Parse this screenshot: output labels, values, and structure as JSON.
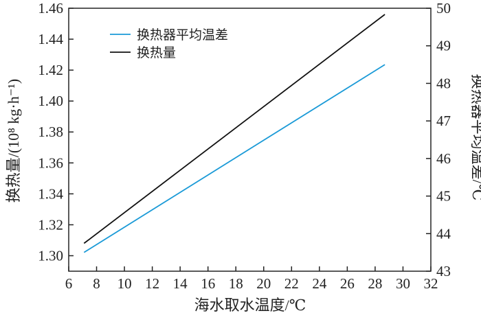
{
  "chart_data": {
    "type": "line",
    "title": "",
    "xlabel": "海水取水温度/℃",
    "ylabel_left": "换热量/(10⁸ kg·h⁻¹)",
    "ylabel_right": "换热器平均温差/℃",
    "xlim": [
      6,
      32
    ],
    "ylim_left": [
      1.29,
      1.46
    ],
    "ylim_right": [
      43,
      50
    ],
    "x_ticks": [
      6,
      8,
      10,
      12,
      14,
      16,
      18,
      20,
      22,
      24,
      26,
      28,
      30,
      32
    ],
    "y_left_ticks": [
      "1.30",
      "1.32",
      "1.34",
      "1.36",
      "1.38",
      "1.40",
      "1.42",
      "1.44",
      "1.46"
    ],
    "y_right_ticks": [
      43,
      44,
      45,
      46,
      47,
      48,
      49,
      50
    ],
    "legend_position": "top-left",
    "grid": false,
    "series": [
      {
        "name": "换热器平均温差",
        "axis": "right",
        "color": "#1a9ad7",
        "x": [
          7.1,
          28.7
        ],
        "y": [
          43.5,
          48.5
        ]
      },
      {
        "name": "换热量",
        "axis": "left",
        "color": "#111111",
        "x": [
          7.1,
          28.7
        ],
        "y": [
          1.308,
          1.456
        ]
      }
    ]
  }
}
